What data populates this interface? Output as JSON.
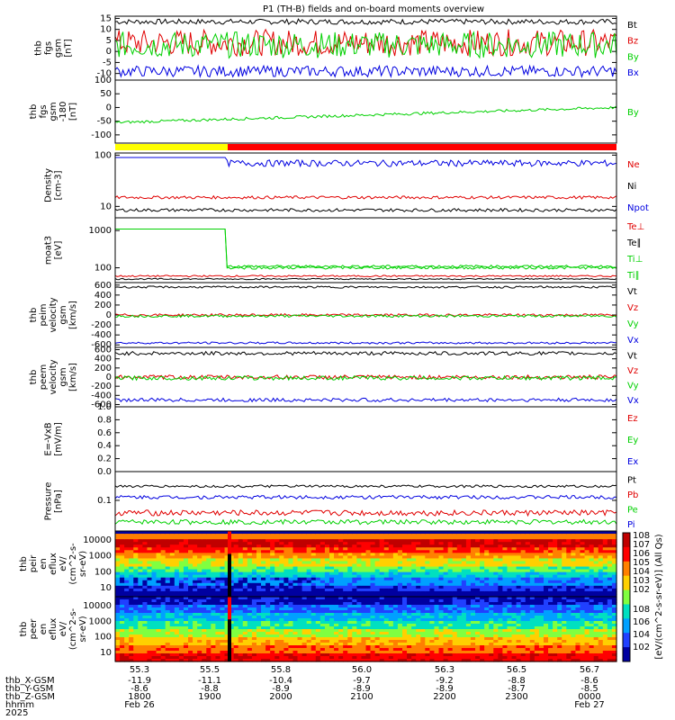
{
  "title": "P1 (TH-B) fields and on-board moments overview",
  "colors": {
    "black": "#000000",
    "red": "#e00000",
    "green": "#00d000",
    "blue": "#0000e0",
    "yellow": "#ffff00",
    "barred": "#ff0000"
  },
  "chart_data": [
    {
      "type": "line",
      "ylabel": [
        "thb",
        "fgs",
        "gsm",
        "[nT]"
      ],
      "yticks": [
        "15",
        "10",
        "5",
        "0",
        "-5",
        "-10"
      ],
      "yrange": [
        -13,
        16
      ],
      "series": [
        {
          "name": "Bt",
          "color": "black",
          "level": 13.5,
          "noise": 1.2
        },
        {
          "name": "Bz",
          "color": "red",
          "level": 4,
          "noise": 6
        },
        {
          "name": "By",
          "color": "green",
          "level": 3,
          "noise": 6
        },
        {
          "name": "Bx",
          "color": "blue",
          "level": -9,
          "noise": 2.5
        }
      ]
    },
    {
      "type": "line",
      "ylabel": [
        "thb",
        "fgs",
        "gsm",
        "-180",
        "[nT]"
      ],
      "yticks": [
        "100",
        "50",
        "0",
        "-50",
        "-100"
      ],
      "yrange": [
        -130,
        100
      ],
      "series": [
        {
          "name": "By",
          "color": "green",
          "start": -55,
          "end": 0,
          "noise": 5
        }
      ]
    },
    {
      "type": "line",
      "ylabel": [
        "Density",
        "[cm-3]"
      ],
      "yticks": [
        "100",
        "10"
      ],
      "log": true,
      "yrange": [
        6,
        110
      ],
      "series": [
        {
          "name": "Ne",
          "color": "red",
          "level": 15,
          "noise": 1
        },
        {
          "name": "Ni",
          "color": "black",
          "level": 8.5,
          "noise": 0.6
        },
        {
          "name": "Npot",
          "color": "blue",
          "level": 70,
          "noise": 10
        }
      ]
    },
    {
      "type": "line",
      "ylabel": [
        "moat3",
        "[eV]"
      ],
      "yticks": [
        "1000",
        "100"
      ],
      "log": true,
      "yrange": [
        40,
        2200
      ],
      "series": [
        {
          "name": "Te⊥",
          "color": "red",
          "level": 60,
          "noise": 3
        },
        {
          "name": "Te∥",
          "color": "black",
          "level": 50,
          "noise": 2
        },
        {
          "name": "Ti⊥",
          "color": "green",
          "level": 110,
          "noise": 8
        },
        {
          "name": "Ti∥",
          "color": "green",
          "level": 100,
          "noise": 8
        }
      ]
    },
    {
      "type": "line",
      "ylabel": [
        "thb",
        "peim",
        "velocity",
        "gsm",
        "[km/s]"
      ],
      "yticks": [
        "600",
        "400",
        "200",
        "0",
        "-200",
        "-400",
        "-600"
      ],
      "yrange": [
        -650,
        650
      ],
      "series": [
        {
          "name": "Vt",
          "color": "black",
          "level": 560,
          "noise": 20
        },
        {
          "name": "Vz",
          "color": "red",
          "level": 0,
          "noise": 25
        },
        {
          "name": "Vy",
          "color": "green",
          "level": -20,
          "noise": 25
        },
        {
          "name": "Vx",
          "color": "blue",
          "level": -560,
          "noise": 20
        }
      ]
    },
    {
      "type": "line",
      "ylabel": [
        "thb",
        "peem",
        "velocity",
        "gsm",
        "[km/s]"
      ],
      "yticks": [
        "600",
        "400",
        "200",
        "0",
        "-200",
        "-400",
        "-600"
      ],
      "yrange": [
        -650,
        650
      ],
      "series": [
        {
          "name": "Vt",
          "color": "black",
          "level": 520,
          "noise": 40
        },
        {
          "name": "Vz",
          "color": "red",
          "level": 0,
          "noise": 45
        },
        {
          "name": "Vy",
          "color": "green",
          "level": -20,
          "noise": 45
        },
        {
          "name": "Vx",
          "color": "blue",
          "level": -500,
          "noise": 40
        }
      ]
    },
    {
      "type": "line",
      "ylabel": [
        "E=-VxB",
        "[mV/m]"
      ],
      "yticks": [
        "1.0",
        "0.8",
        "0.6",
        "0.4",
        "0.2",
        "0.0"
      ],
      "yrange": [
        0,
        1
      ],
      "series": [
        {
          "name": "Ez",
          "color": "red"
        },
        {
          "name": "Ey",
          "color": "green"
        },
        {
          "name": "Ex",
          "color": "blue"
        }
      ]
    },
    {
      "type": "line",
      "ylabel": [
        "Pressure",
        "[nPa]"
      ],
      "yticks": [
        "0.1"
      ],
      "log": true,
      "yrange": [
        0.018,
        0.5
      ],
      "series": [
        {
          "name": "Pt",
          "color": "black",
          "level": 0.22,
          "noise": 0.015
        },
        {
          "name": "Pb",
          "color": "red",
          "level": 0.05,
          "noise": 0.008
        },
        {
          "name": "Pe",
          "color": "green",
          "level": 0.03,
          "noise": 0.004
        },
        {
          "name": "Pi",
          "color": "blue",
          "level": 0.12,
          "noise": 0.012
        }
      ]
    },
    {
      "type": "heatmap",
      "ylabel": [
        "thb",
        "peir",
        "en",
        "eflux",
        "eV/",
        "(cm^2-s-",
        "sr-eV)"
      ],
      "yticks": [
        "10000",
        "1000",
        "100",
        "10"
      ]
    },
    {
      "type": "heatmap",
      "ylabel": [
        "thb",
        "peer",
        "en",
        "eflux",
        "eV/",
        "(cm^2-s-",
        "sr-eV)"
      ],
      "yticks": [
        "10000",
        "1000",
        "100",
        "10"
      ]
    }
  ],
  "colorbar": {
    "ticks": [
      "10^8",
      "10^7",
      "10^6",
      "10^5",
      "10^4",
      "10^3",
      "10^2"
    ],
    "ticks2": [
      "10^8",
      "10^6",
      "10^4",
      "10^2"
    ],
    "label": "[eV/(cm^2-s-sr-eV)] (All Qs)"
  },
  "xaxis": {
    "rows": [
      {
        "label": "thb_X-GSM",
        "values": [
          "-11.9",
          "-11.1",
          "-10.4",
          "-9.7",
          "-9.2",
          "-8.8",
          "-8.6"
        ]
      },
      {
        "label": "thb_Y-GSM",
        "values": [
          "-8.6",
          "-8.8",
          "-8.9",
          "-8.9",
          "-8.9",
          "-8.7",
          "-8.5"
        ]
      },
      {
        "label": "thb_Z-GSM",
        "values": [
          "1800",
          "1900",
          "2000",
          "2100",
          "2200",
          "2300",
          "0000"
        ]
      },
      {
        "label": "hhmm",
        "values": [
          "Feb 26",
          "",
          "",
          "",
          "",
          "",
          "Feb 27"
        ]
      },
      {
        "label": "2025",
        "values": [
          "",
          "",
          "",
          "",
          "",
          "",
          ""
        ]
      }
    ],
    "top_values": [
      "55.3",
      "55.5",
      "55.8",
      "56.0",
      "56.3",
      "56.5",
      "56.7"
    ]
  }
}
